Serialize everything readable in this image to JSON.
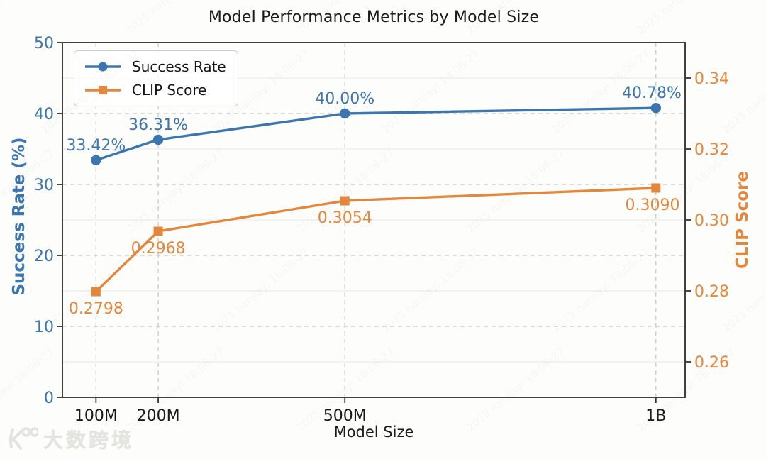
{
  "title": "Model Performance Metrics by Model Size",
  "axes": {
    "x_label": "Model Size",
    "y_left_label": "Success Rate (%)",
    "y_right_label": "CLIP Score"
  },
  "legend": {
    "items": [
      {
        "label": "Success Rate"
      },
      {
        "label": "CLIP Score"
      }
    ]
  },
  "colors": {
    "blue": "#3B76AF",
    "orange": "#E5873B",
    "grid_dashed": "#c9c9c9",
    "grid_solid": "#ececec",
    "spine": "#2b2b2b",
    "tick_mark": "#333333",
    "x_tick_text": "#1a1a1a",
    "title_text": "#1b1b1b",
    "logo_gray": "#e3e3e0"
  },
  "watermark": {
    "logo_text": "大数跨境",
    "tile_text": "2025 nanjiayi 18:06-27"
  },
  "chart_data": {
    "type": "line",
    "title": "Model Performance Metrics by Model Size",
    "xlabel": "Model Size",
    "ylabel_left": "Success Rate (%)",
    "ylabel_right": "CLIP Score",
    "categories": [
      "100M",
      "200M",
      "500M",
      "1B"
    ],
    "x_values": [
      100,
      200,
      500,
      1000
    ],
    "xlim": [
      46,
      1047
    ],
    "grid": true,
    "legend_position": "upper left",
    "y_left": {
      "lim": [
        0,
        50
      ],
      "ticks": [
        0,
        10,
        20,
        30,
        40,
        50
      ],
      "tick_labels": [
        "0",
        "10",
        "20",
        "30",
        "40",
        "50"
      ]
    },
    "y_right": {
      "lim": [
        0.25,
        0.35
      ],
      "ticks": [
        0.26,
        0.28,
        0.3,
        0.32,
        0.34
      ],
      "tick_labels": [
        "0.26",
        "0.28",
        "0.30",
        "0.32",
        "0.34"
      ]
    },
    "series": [
      {
        "name": "Success Rate",
        "axis": "left",
        "color": "#3B76AF",
        "marker": "circle",
        "values": [
          33.42,
          36.31,
          40.0,
          40.78
        ],
        "labels": [
          "33.42%",
          "36.31%",
          "40.00%",
          "40.78%"
        ]
      },
      {
        "name": "CLIP Score",
        "axis": "right",
        "color": "#E5873B",
        "marker": "square",
        "values": [
          0.2798,
          0.2968,
          0.3054,
          0.309
        ],
        "labels": [
          "0.2798",
          "0.2968",
          "0.3054",
          "0.3090"
        ]
      }
    ]
  }
}
